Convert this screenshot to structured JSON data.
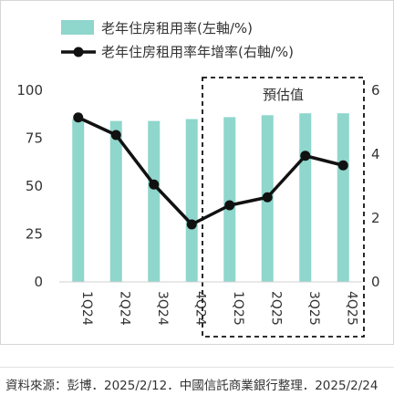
{
  "chart_data": {
    "type": "bar",
    "categories": [
      "1Q24",
      "2Q24",
      "3Q24",
      "4Q24",
      "1Q25",
      "2Q25",
      "3Q25",
      "4Q25"
    ],
    "series": [
      {
        "name": "老年住房租用率(左軸/%)",
        "type": "bar",
        "axis": "left",
        "color": "#8fd6cc",
        "values": [
          85,
          84,
          84,
          85,
          86,
          87,
          88,
          88
        ]
      },
      {
        "name": "老年住房租用率年增率(右軸/%)",
        "type": "line",
        "axis": "right",
        "color": "#111111",
        "values": [
          5.15,
          4.6,
          3.05,
          1.8,
          2.4,
          2.65,
          3.95,
          3.65
        ]
      }
    ],
    "y_left": {
      "min": 0,
      "max": 100,
      "ticks": [
        0,
        25,
        50,
        75,
        100
      ]
    },
    "y_right": {
      "min": 0,
      "max": 6,
      "ticks": [
        0,
        2,
        4,
        6
      ]
    },
    "annotation": {
      "label": "預估值",
      "from_category": "1Q25",
      "to_category": "4Q25"
    },
    "legend_position": "top"
  },
  "source_note": "資料來源：彭博．2025/2/12．中國信託商業銀行整理．2025/2/24"
}
